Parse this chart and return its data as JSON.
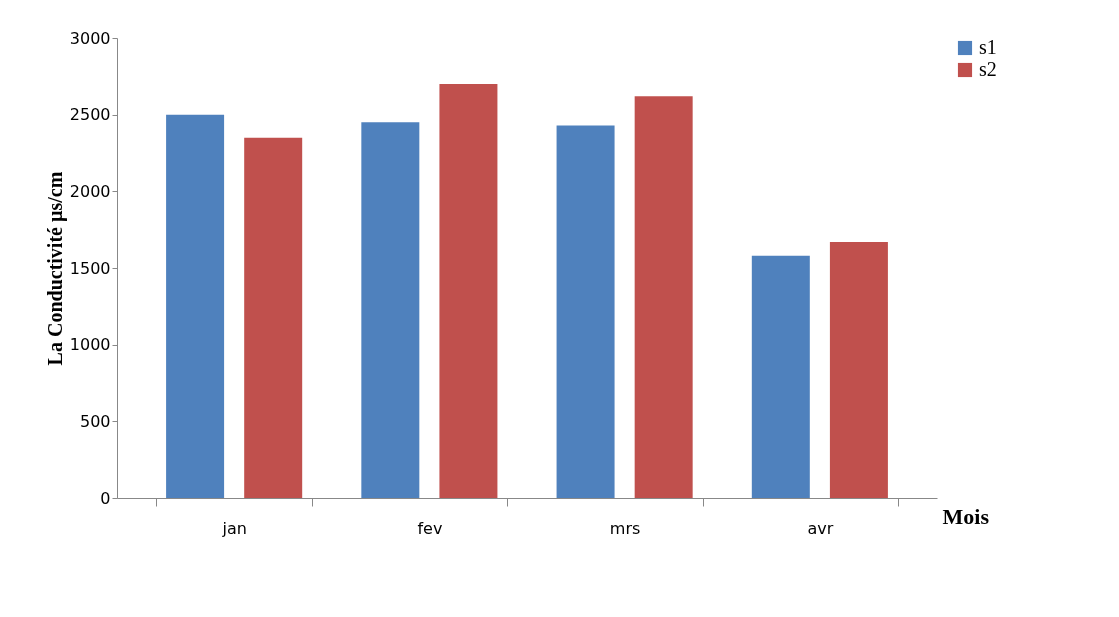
{
  "chart_data": {
    "type": "bar",
    "xlabel": "Mois",
    "ylabel": "La Conductivité µs/cm",
    "categories": [
      "jan",
      "fev",
      "mrs",
      "avr"
    ],
    "series": [
      {
        "name": "s1",
        "color": "#4f81bd",
        "values": [
          2500,
          2450,
          2430,
          1580
        ]
      },
      {
        "name": "s2",
        "color": "#c0504d",
        "values": [
          2350,
          2700,
          2620,
          1670
        ]
      }
    ],
    "ylim": [
      0,
      3000
    ],
    "yticks": [
      0,
      500,
      1000,
      1500,
      2000,
      2500,
      3000
    ],
    "grid": false,
    "legend": "right"
  }
}
